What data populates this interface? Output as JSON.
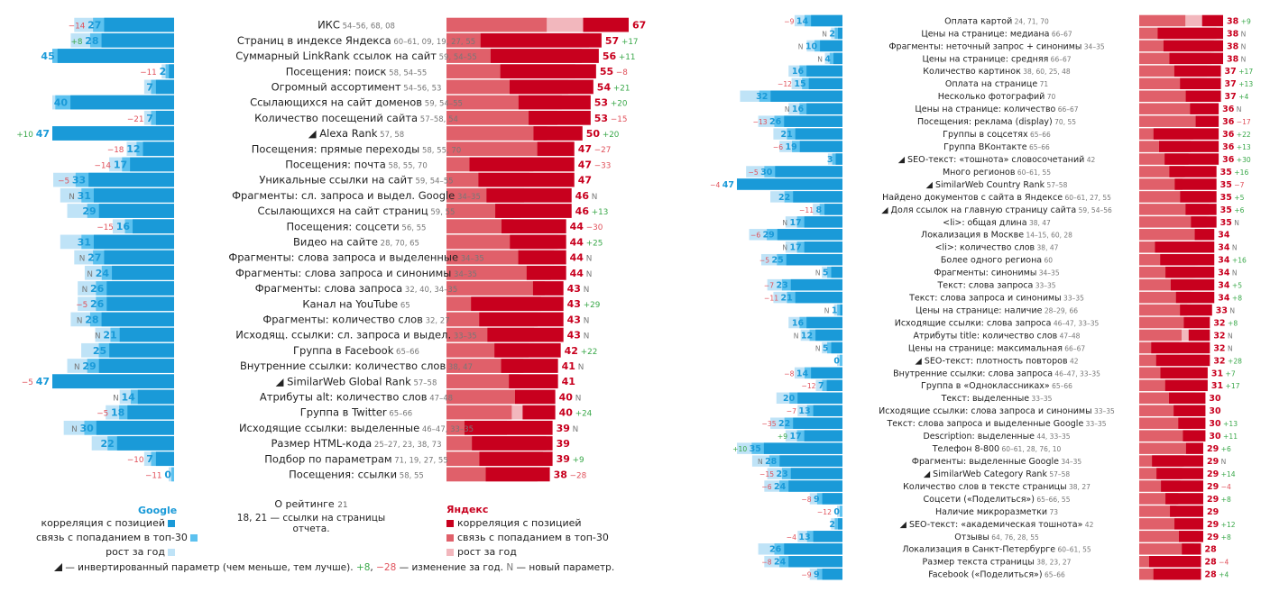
{
  "colors": {
    "google_dark": "#1a9ad8",
    "google_mid": "#5cc1ef",
    "google_light": "#bfe3f7",
    "yandex_dark": "#c8001e",
    "yandex_mid": "#e0606a",
    "yandex_light": "#f2b7bd",
    "change_up": "#3aa84a",
    "change_down": "#e0505a"
  },
  "chart_data": [
    {
      "type": "bar",
      "title": "Ranking factors – part 1",
      "google_axis_max": 47,
      "yandex_axis_max": 67,
      "rows": [
        {
          "label": "ИКС",
          "refs": "54–56, 68, 08",
          "invert": false,
          "g": 27,
          "gc": "−14",
          "y": 67,
          "yc": ""
        },
        {
          "label": "Страниц в индексе Яндекса",
          "refs": "60–61, 09, 19, 27, 55",
          "invert": false,
          "g": 28,
          "gc": "+8",
          "y": 57,
          "yc": "+17"
        },
        {
          "label": "Суммарный LinkRank ссылок на сайт",
          "refs": "59, 54–55",
          "invert": false,
          "g": 45,
          "gc": "",
          "y": 56,
          "yc": "+11"
        },
        {
          "label": "Посещения: поиск",
          "refs": "58, 54–55",
          "invert": false,
          "g": 2,
          "gc": "−11",
          "y": 55,
          "yc": "−8"
        },
        {
          "label": "Огромный ассортимент",
          "refs": "54–56, 53",
          "invert": false,
          "g": 7,
          "gc": "",
          "y": 54,
          "yc": "+21"
        },
        {
          "label": "Ссылающихся на сайт доменов",
          "refs": "59, 54–55",
          "invert": false,
          "g": 40,
          "gc": "",
          "y": 53,
          "yc": "+20"
        },
        {
          "label": "Количество посещений сайта",
          "refs": "57–58, 54",
          "invert": false,
          "g": 7,
          "gc": "−21",
          "y": 53,
          "yc": "−15"
        },
        {
          "label": "Alexa Rank",
          "refs": "57, 58",
          "invert": true,
          "g": 47,
          "gc": "+10",
          "y": 50,
          "yc": "+20"
        },
        {
          "label": "Посещения: прямые переходы",
          "refs": "58, 55, 70",
          "invert": false,
          "g": 12,
          "gc": "−18",
          "y": 47,
          "yc": "−27"
        },
        {
          "label": "Посещения: почта",
          "refs": "58, 55, 70",
          "invert": false,
          "g": 17,
          "gc": "−14",
          "y": 47,
          "yc": "−33"
        },
        {
          "label": "Уникальные ссылки на сайт",
          "refs": "59, 54–55",
          "invert": false,
          "g": 33,
          "gc": "−5",
          "y": 47,
          "yc": ""
        },
        {
          "label": "Фрагменты: сл. запроса и выдел. Google",
          "refs": "34–35",
          "invert": false,
          "g": 31,
          "gc": "N",
          "y": 46,
          "yc": "N"
        },
        {
          "label": "Ссылающихся на сайт страниц",
          "refs": "59, 55",
          "invert": false,
          "g": 29,
          "gc": "",
          "y": 46,
          "yc": "+13"
        },
        {
          "label": "Посещения: соцсети",
          "refs": "56, 55",
          "invert": false,
          "g": 16,
          "gc": "−15",
          "y": 44,
          "yc": "−30"
        },
        {
          "label": "Видео на сайте",
          "refs": "28, 70, 65",
          "invert": false,
          "g": 31,
          "gc": "",
          "y": 44,
          "yc": "+25"
        },
        {
          "label": "Фрагменты: слова запроса и выделенные",
          "refs": "34–35",
          "invert": false,
          "g": 27,
          "gc": "N",
          "y": 44,
          "yc": "N"
        },
        {
          "label": "Фрагменты: слова запроса и синонимы",
          "refs": "34–35",
          "invert": false,
          "g": 24,
          "gc": "N",
          "y": 44,
          "yc": "N"
        },
        {
          "label": "Фрагменты: слова запроса",
          "refs": "32, 40, 34–35",
          "invert": false,
          "g": 26,
          "gc": "N",
          "y": 43,
          "yc": "N"
        },
        {
          "label": "Канал на YouTube",
          "refs": "65",
          "invert": false,
          "g": 26,
          "gc": "−5",
          "y": 43,
          "yc": "+29"
        },
        {
          "label": "Фрагменты: количество слов",
          "refs": "32, 27",
          "invert": false,
          "g": 28,
          "gc": "N",
          "y": 43,
          "yc": "N"
        },
        {
          "label": "Исходящ. ссылки: сл. запроса и выдел.",
          "refs": "33–35",
          "invert": false,
          "g": 21,
          "gc": "N",
          "y": 43,
          "yc": "N"
        },
        {
          "label": "Группа в Facebook",
          "refs": "65–66",
          "invert": false,
          "g": 25,
          "gc": "",
          "y": 42,
          "yc": "+22"
        },
        {
          "label": "Внутренние ссылки: количество слов",
          "refs": "38, 47",
          "invert": false,
          "g": 29,
          "gc": "N",
          "y": 41,
          "yc": "N"
        },
        {
          "label": "SimilarWeb Global Rank",
          "refs": "57–58",
          "invert": true,
          "g": 47,
          "gc": "−5",
          "y": 41,
          "yc": ""
        },
        {
          "label": "Атрибуты alt: количество слов",
          "refs": "47–48",
          "invert": false,
          "g": 14,
          "gc": "N",
          "y": 40,
          "yc": "N"
        },
        {
          "label": "Группа в Twitter",
          "refs": "65–66",
          "invert": false,
          "g": 18,
          "gc": "−5",
          "y": 40,
          "yc": "+24"
        },
        {
          "label": "Исходящие ссылки: выделенные",
          "refs": "46–47, 33–35",
          "invert": false,
          "g": 30,
          "gc": "N",
          "y": 39,
          "yc": "N"
        },
        {
          "label": "Размер HTML-кода",
          "refs": "25–27, 23, 38, 73",
          "invert": false,
          "g": 22,
          "gc": "",
          "y": 39,
          "yc": ""
        },
        {
          "label": "Подбор по параметрам",
          "refs": "71, 19, 27, 55",
          "invert": false,
          "g": 7,
          "gc": "−10",
          "y": 39,
          "yc": "+9"
        },
        {
          "label": "Посещения: ссылки",
          "refs": "58, 55",
          "invert": false,
          "g": 0,
          "gc": "−11",
          "y": 38,
          "yc": "−28"
        }
      ]
    },
    {
      "type": "bar",
      "title": "Ranking factors – part 2",
      "google_axis_max": 47,
      "yandex_axis_max": 38,
      "rows": [
        {
          "label": "Оплата картой",
          "refs": "24, 71, 70",
          "invert": false,
          "g": 14,
          "gc": "−9",
          "y": 38,
          "yc": "+9"
        },
        {
          "label": "Цены на странице: медиана",
          "refs": "66–67",
          "invert": false,
          "g": 2,
          "gc": "N",
          "y": 38,
          "yc": "N"
        },
        {
          "label": "Фрагменты: неточный запрос + синонимы",
          "refs": "34–35",
          "invert": false,
          "g": 10,
          "gc": "N",
          "y": 38,
          "yc": "N"
        },
        {
          "label": "Цены на странице: средняя",
          "refs": "66–67",
          "invert": false,
          "g": 4,
          "gc": "N",
          "y": 38,
          "yc": "N"
        },
        {
          "label": "Количество картинок",
          "refs": "38, 60, 25, 48",
          "invert": false,
          "g": 16,
          "gc": "",
          "y": 37,
          "yc": "+17"
        },
        {
          "label": "Оплата на странице",
          "refs": "71",
          "invert": false,
          "g": 15,
          "gc": "−12",
          "y": 37,
          "yc": "+13"
        },
        {
          "label": "Несколько фотографий",
          "refs": "70",
          "invert": false,
          "g": 32,
          "gc": "",
          "y": 37,
          "yc": "+4"
        },
        {
          "label": "Цены на странице: количество",
          "refs": "66–67",
          "invert": false,
          "g": 16,
          "gc": "N",
          "y": 36,
          "yc": "N"
        },
        {
          "label": "Посещения: реклама (display)",
          "refs": "70, 55",
          "invert": false,
          "g": 26,
          "gc": "−13",
          "y": 36,
          "yc": "−17"
        },
        {
          "label": "Группы в соцсетях",
          "refs": "65–66",
          "invert": false,
          "g": 21,
          "gc": "",
          "y": 36,
          "yc": "+22"
        },
        {
          "label": "Группа ВКонтакте",
          "refs": "65–66",
          "invert": false,
          "g": 19,
          "gc": "−6",
          "y": 36,
          "yc": "+13"
        },
        {
          "label": "SEO-текст: «тошнота» словосочетаний",
          "refs": "42",
          "invert": true,
          "g": 3,
          "gc": "",
          "y": 36,
          "yc": "+30"
        },
        {
          "label": "Много регионов",
          "refs": "60–61, 55",
          "invert": false,
          "g": 30,
          "gc": "−5",
          "y": 35,
          "yc": "+16"
        },
        {
          "label": "SimilarWeb Country Rank",
          "refs": "57–58",
          "invert": true,
          "g": 47,
          "gc": "−4",
          "y": 35,
          "yc": "−7"
        },
        {
          "label": "Найдено документов с сайта в Яндексе",
          "refs": "60–61, 27, 55",
          "invert": false,
          "g": 22,
          "gc": "",
          "y": 35,
          "yc": "+5"
        },
        {
          "label": "Доля ссылок на главную страницу сайта",
          "refs": "59, 54–56",
          "invert": true,
          "g": 8,
          "gc": "−11",
          "y": 35,
          "yc": "+6"
        },
        {
          "label": "<li>: общая длина",
          "refs": "38, 47",
          "invert": false,
          "g": 17,
          "gc": "N",
          "y": 35,
          "yc": "N"
        },
        {
          "label": "Локализация в Москве",
          "refs": "14–15, 60, 28",
          "invert": false,
          "g": 29,
          "gc": "−6",
          "y": 34,
          "yc": ""
        },
        {
          "label": "<li>: количество слов",
          "refs": "38, 47",
          "invert": false,
          "g": 17,
          "gc": "N",
          "y": 34,
          "yc": "N"
        },
        {
          "label": "Более одного региона",
          "refs": "60",
          "invert": false,
          "g": 25,
          "gc": "−5",
          "y": 34,
          "yc": "+16"
        },
        {
          "label": "Фрагменты: синонимы",
          "refs": "34–35",
          "invert": false,
          "g": 5,
          "gc": "N",
          "y": 34,
          "yc": "N"
        },
        {
          "label": "Текст: слова запроса",
          "refs": "33–35",
          "invert": false,
          "g": 23,
          "gc": "−7",
          "y": 34,
          "yc": "+5"
        },
        {
          "label": "Текст: слова запроса и синонимы",
          "refs": "33–35",
          "invert": false,
          "g": 21,
          "gc": "−11",
          "y": 34,
          "yc": "+8"
        },
        {
          "label": "Цены на странице: наличие",
          "refs": "28–29, 66",
          "invert": false,
          "g": 1,
          "gc": "N",
          "y": 33,
          "yc": "N"
        },
        {
          "label": "Исходящие ссылки: слова запроса",
          "refs": "46–47, 33–35",
          "invert": false,
          "g": 16,
          "gc": "",
          "y": 32,
          "yc": "+8"
        },
        {
          "label": "Атрибуты title: количество слов",
          "refs": "47–48",
          "invert": false,
          "g": 12,
          "gc": "N",
          "y": 32,
          "yc": "N"
        },
        {
          "label": "Цены на странице: максимальная",
          "refs": "66–67",
          "invert": false,
          "g": 5,
          "gc": "N",
          "y": 32,
          "yc": "N"
        },
        {
          "label": "SEO-текст: плотность повторов",
          "refs": "42",
          "invert": true,
          "g": 0,
          "gc": "",
          "y": 32,
          "yc": "+28"
        },
        {
          "label": "Внутренние ссылки: слова запроса",
          "refs": "46–47, 33–35",
          "invert": false,
          "g": 14,
          "gc": "−8",
          "y": 31,
          "yc": "+7"
        },
        {
          "label": "Группа в «Одноклассниках»",
          "refs": "65–66",
          "invert": false,
          "g": 7,
          "gc": "−12",
          "y": 31,
          "yc": "+17"
        },
        {
          "label": "Текст: выделенные",
          "refs": "33–35",
          "invert": false,
          "g": 20,
          "gc": "",
          "y": 30,
          "yc": ""
        },
        {
          "label": "Исходящие ссылки: слова запроса и синонимы",
          "refs": "33–35",
          "invert": false,
          "g": 13,
          "gc": "−7",
          "y": 30,
          "yc": ""
        },
        {
          "label": "Текст: слова запроса и выделенные Google",
          "refs": "33–35",
          "invert": false,
          "g": 22,
          "gc": "−35",
          "y": 30,
          "yc": "+13"
        },
        {
          "label": "Description: выделенные",
          "refs": "44, 33–35",
          "invert": false,
          "g": 17,
          "gc": "+9",
          "y": 30,
          "yc": "+11"
        },
        {
          "label": "Телефон 8-800",
          "refs": "60–61, 28, 76, 10",
          "invert": false,
          "g": 35,
          "gc": "+10",
          "y": 29,
          "yc": "+6"
        },
        {
          "label": "Фрагменты: выделенные Google",
          "refs": "34–35",
          "invert": false,
          "g": 28,
          "gc": "N",
          "y": 29,
          "yc": "N"
        },
        {
          "label": "SimilarWeb Category Rank",
          "refs": "57–58",
          "invert": true,
          "g": 23,
          "gc": "−15",
          "y": 29,
          "yc": "+14"
        },
        {
          "label": "Количество слов в тексте страницы",
          "refs": "38, 27",
          "invert": false,
          "g": 24,
          "gc": "−6",
          "y": 29,
          "yc": "−4"
        },
        {
          "label": "Соцсети («Поделиться»)",
          "refs": "65–66, 55",
          "invert": false,
          "g": 9,
          "gc": "−8",
          "y": 29,
          "yc": "+8"
        },
        {
          "label": "Наличие микроразметки",
          "refs": "73",
          "invert": false,
          "g": 0,
          "gc": "−12",
          "y": 29,
          "yc": ""
        },
        {
          "label": "SEO-текст: «академическая тошнота»",
          "refs": "42",
          "invert": true,
          "g": 2,
          "gc": "",
          "y": 29,
          "yc": "+12"
        },
        {
          "label": "Отзывы",
          "refs": "64, 76, 28, 55",
          "invert": false,
          "g": 13,
          "gc": "−4",
          "y": 29,
          "yc": "+8"
        },
        {
          "label": "Локализация в Санкт-Петербурге",
          "refs": "60–61, 55",
          "invert": false,
          "g": 26,
          "gc": "",
          "y": 28,
          "yc": ""
        },
        {
          "label": "Размер текста страницы",
          "refs": "38, 23, 27",
          "invert": false,
          "g": 24,
          "gc": "−8",
          "y": 28,
          "yc": "−4"
        },
        {
          "label": "Facebook («Поделиться»)",
          "refs": "65–66",
          "invert": false,
          "g": 9,
          "gc": "−9",
          "y": 28,
          "yc": "+4"
        }
      ]
    }
  ],
  "legend": {
    "google_title": "Google",
    "yandex_title": "Яндекс",
    "items": [
      "корреляция с позицией",
      "связь с попаданием в топ-30",
      "рост за год"
    ],
    "about_title": "О рейтинге",
    "about_ref": "21",
    "about_refs_line": "18, 21 — ссылки на страницы отчета.",
    "note_invert": "— инвертированный параметр (чем меньше, тем лучше).",
    "note_plus": "+8",
    "note_minus": "−28",
    "note_change": "— изменение за год.",
    "note_n": "N",
    "note_new": "— новый параметр."
  }
}
